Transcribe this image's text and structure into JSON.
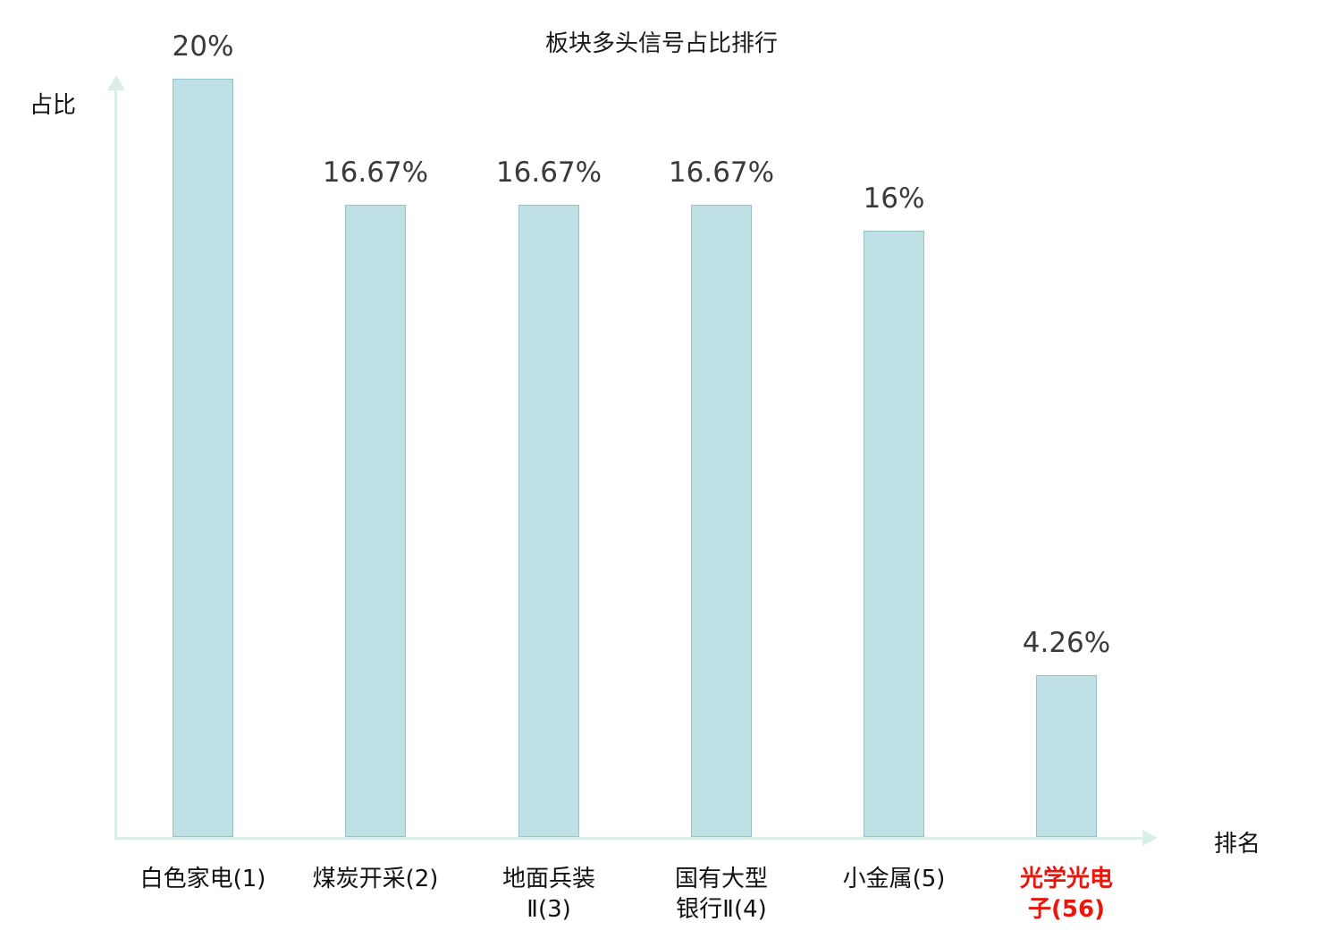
{
  "chart_data": {
    "type": "bar",
    "title": "板块多头信号占比排行",
    "xlabel": "排名",
    "ylabel": "占比",
    "categories": [
      "白色家电(1)",
      "煤炭开采(2)",
      "地面兵装Ⅱ(3)",
      "国有大型银行Ⅱ(4)",
      "小金属(5)",
      "光学光电子(56)"
    ],
    "category_lines": [
      [
        "白色家电(1)"
      ],
      [
        "煤炭开采(2)"
      ],
      [
        "地面兵装",
        "Ⅱ(3)"
      ],
      [
        "国有大型",
        "银行Ⅱ(4)"
      ],
      [
        "小金属(5)"
      ],
      [
        "光学光电",
        "子(56)"
      ]
    ],
    "values": [
      20,
      16.67,
      16.67,
      16.67,
      16,
      4.26
    ],
    "value_labels": [
      "20%",
      "16.67%",
      "16.67%",
      "16.67%",
      "16%",
      "4.26%"
    ],
    "highlighted_category_index": 5,
    "ylim": [
      0,
      20
    ],
    "grid": false,
    "legend": null,
    "colors": {
      "bar_fill": "#bfe0e4",
      "bar_border": "#93c4cc",
      "axis": "#d9eee8",
      "value_text": "#3a3a3a",
      "category_text": "#111111",
      "highlight_text": "#e8160c"
    }
  }
}
